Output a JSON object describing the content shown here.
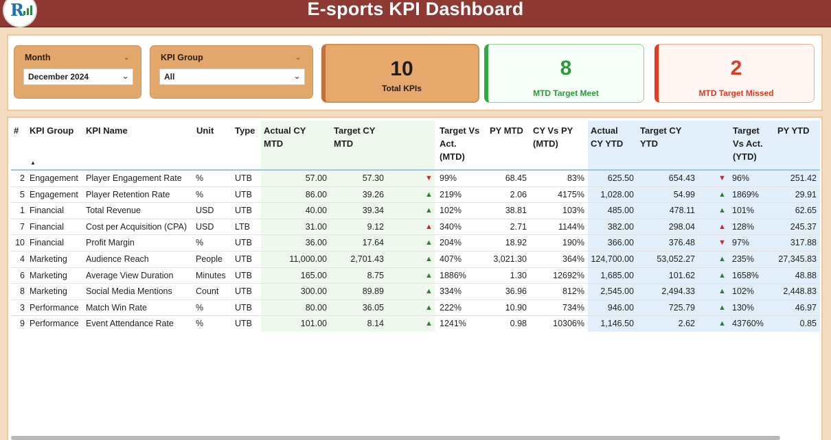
{
  "header": {
    "title": "E-sports KPI Dashboard",
    "logo_letter": "R"
  },
  "slicers": {
    "month": {
      "label": "Month",
      "value": "December 2024"
    },
    "kpi_group": {
      "label": "KPI Group",
      "value": "All"
    }
  },
  "cards": {
    "total": {
      "value": "10",
      "label": "Total KPIs"
    },
    "meet": {
      "value": "8",
      "label": "MTD Target Meet"
    },
    "missed": {
      "value": "2",
      "label": "MTD Target Missed"
    }
  },
  "colors": {
    "header": "#8e3a33",
    "green": "#2e7d32",
    "red": "#d32020",
    "orange_card": "#e7a86c"
  },
  "table": {
    "headers": {
      "num": "#",
      "group": "KPI Group",
      "name": "KPI Name",
      "unit": "Unit",
      "type": "Type",
      "actual_mtd": "Actual CY\nMTD",
      "target_mtd": "Target CY\nMTD",
      "tva_mtd": "Target Vs\nAct.\n(MTD)",
      "py_mtd": "PY MTD",
      "cy_vs_py": "CY Vs PY\n(MTD)",
      "actual_ytd": "Actual\nCY YTD",
      "target_ytd": "Target CY\nYTD",
      "tva_ytd": "Target\nVs Act.\n(YTD)",
      "py_ytd": "PY YTD"
    },
    "rows": [
      {
        "num": "2",
        "group": "Engagement",
        "name": "Player Engagement Rate",
        "unit": "%",
        "type": "UTB",
        "actual_mtd": "57.00",
        "target_mtd": "57.30",
        "mtd_icon": "down-arrow",
        "mtd_glyph": "▼",
        "tva_mtd": "99%",
        "py_mtd": "68.45",
        "cy_vs_py": "83%",
        "actual_ytd": "625.50",
        "target_ytd": "654.43",
        "ytd_icon": "down-arrow",
        "ytd_glyph": "▼",
        "tva_ytd": "96%",
        "py_ytd": "251.42"
      },
      {
        "num": "5",
        "group": "Engagement",
        "name": "Player Retention Rate",
        "unit": "%",
        "type": "UTB",
        "actual_mtd": "86.00",
        "target_mtd": "39.26",
        "mtd_icon": "up-arrow",
        "mtd_glyph": "▲",
        "tva_mtd": "219%",
        "py_mtd": "2.06",
        "cy_vs_py": "4175%",
        "actual_ytd": "1,028.00",
        "target_ytd": "54.99",
        "ytd_icon": "up-arrow",
        "ytd_glyph": "▲",
        "tva_ytd": "1869%",
        "py_ytd": "29.91"
      },
      {
        "num": "1",
        "group": "Financial",
        "name": "Total Revenue",
        "unit": "USD",
        "type": "UTB",
        "actual_mtd": "40.00",
        "target_mtd": "39.34",
        "mtd_icon": "up-arrow",
        "mtd_glyph": "▲",
        "tva_mtd": "102%",
        "py_mtd": "38.81",
        "cy_vs_py": "103%",
        "actual_ytd": "485.00",
        "target_ytd": "478.11",
        "ytd_icon": "up-arrow",
        "ytd_glyph": "▲",
        "tva_ytd": "101%",
        "py_ytd": "62.65"
      },
      {
        "num": "7",
        "group": "Financial",
        "name": "Cost per Acquisition (CPA)",
        "unit": "USD",
        "type": "LTB",
        "actual_mtd": "31.00",
        "target_mtd": "9.12",
        "mtd_icon": "red-up-arrow",
        "mtd_glyph": "▲",
        "tva_mtd": "340%",
        "py_mtd": "2.71",
        "cy_vs_py": "1144%",
        "actual_ytd": "382.00",
        "target_ytd": "298.04",
        "ytd_icon": "red-up-arrow",
        "ytd_glyph": "▲",
        "tva_ytd": "128%",
        "py_ytd": "245.37"
      },
      {
        "num": "10",
        "group": "Financial",
        "name": "Profit Margin",
        "unit": "%",
        "type": "UTB",
        "actual_mtd": "36.00",
        "target_mtd": "17.64",
        "mtd_icon": "up-arrow",
        "mtd_glyph": "▲",
        "tva_mtd": "204%",
        "py_mtd": "18.92",
        "cy_vs_py": "190%",
        "actual_ytd": "366.00",
        "target_ytd": "376.48",
        "ytd_icon": "down-arrow",
        "ytd_glyph": "▼",
        "tva_ytd": "97%",
        "py_ytd": "317.88"
      },
      {
        "num": "4",
        "group": "Marketing",
        "name": "Audience Reach",
        "unit": "People",
        "type": "UTB",
        "actual_mtd": "11,000.00",
        "target_mtd": "2,701.43",
        "mtd_icon": "up-arrow",
        "mtd_glyph": "▲",
        "tva_mtd": "407%",
        "py_mtd": "3,021.30",
        "cy_vs_py": "364%",
        "actual_ytd": "124,700.00",
        "target_ytd": "53,052.27",
        "ytd_icon": "up-arrow",
        "ytd_glyph": "▲",
        "tva_ytd": "235%",
        "py_ytd": "27,345.83"
      },
      {
        "num": "6",
        "group": "Marketing",
        "name": "Average View Duration",
        "unit": "Minutes",
        "type": "UTB",
        "actual_mtd": "165.00",
        "target_mtd": "8.75",
        "mtd_icon": "up-arrow",
        "mtd_glyph": "▲",
        "tva_mtd": "1886%",
        "py_mtd": "1.30",
        "cy_vs_py": "12692%",
        "actual_ytd": "1,685.00",
        "target_ytd": "101.62",
        "ytd_icon": "up-arrow",
        "ytd_glyph": "▲",
        "tva_ytd": "1658%",
        "py_ytd": "48.88"
      },
      {
        "num": "8",
        "group": "Marketing",
        "name": "Social Media Mentions",
        "unit": "Count",
        "type": "UTB",
        "actual_mtd": "300.00",
        "target_mtd": "89.89",
        "mtd_icon": "up-arrow",
        "mtd_glyph": "▲",
        "tva_mtd": "334%",
        "py_mtd": "36.96",
        "cy_vs_py": "812%",
        "actual_ytd": "2,545.00",
        "target_ytd": "2,494.33",
        "ytd_icon": "up-arrow",
        "ytd_glyph": "▲",
        "tva_ytd": "102%",
        "py_ytd": "2,448.83"
      },
      {
        "num": "3",
        "group": "Performance",
        "name": "Match Win Rate",
        "unit": "%",
        "type": "UTB",
        "actual_mtd": "80.00",
        "target_mtd": "36.05",
        "mtd_icon": "up-arrow",
        "mtd_glyph": "▲",
        "tva_mtd": "222%",
        "py_mtd": "10.90",
        "cy_vs_py": "734%",
        "actual_ytd": "946.00",
        "target_ytd": "725.79",
        "ytd_icon": "up-arrow",
        "ytd_glyph": "▲",
        "tva_ytd": "130%",
        "py_ytd": "46.97"
      },
      {
        "num": "9",
        "group": "Performance",
        "name": "Event Attendance Rate",
        "unit": "%",
        "type": "UTB",
        "actual_mtd": "101.00",
        "target_mtd": "8.14",
        "mtd_icon": "up-arrow",
        "mtd_glyph": "▲",
        "tva_mtd": "1241%",
        "py_mtd": "0.98",
        "cy_vs_py": "10306%",
        "actual_ytd": "1,146.50",
        "target_ytd": "2.62",
        "ytd_icon": "up-arrow",
        "ytd_glyph": "▲",
        "tva_ytd": "43760%",
        "py_ytd": "0.85"
      }
    ]
  }
}
